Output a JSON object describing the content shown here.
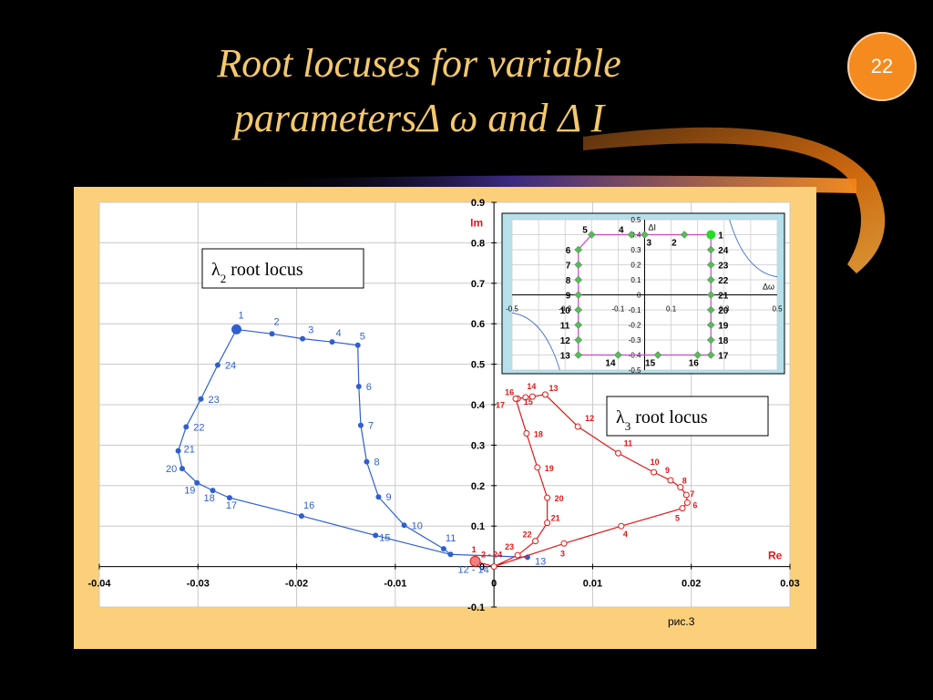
{
  "slide": {
    "title_line1": "Root locuses for variable",
    "title_line2": "parametersΔ ω  and Δ  I",
    "page_number": "22"
  },
  "colors": {
    "title": "#F4C86C",
    "badge": "#F58A1F",
    "frame": "#FCD07A",
    "lambda2": "#2E5FD0",
    "lambda3": "#E01818",
    "inset_line": "#CC44CC",
    "inset_marker": "#5CB85C"
  },
  "chart_data": [
    {
      "type": "line",
      "xlabel": "Re",
      "ylabel": "Im",
      "xlim": [
        -0.04,
        0.03
      ],
      "ylim": [
        -0.1,
        0.9
      ],
      "xticks": [
        -0.04,
        -0.03,
        -0.02,
        -0.01,
        0,
        0.01,
        0.02,
        0.03
      ],
      "xtick_labels": [
        "-0.04",
        "-0.03",
        "-0.02",
        "-0.01",
        "0",
        "0.01",
        "0.02",
        "0.03"
      ],
      "yticks": [
        -0.1,
        0,
        0.1,
        0.2,
        0.3,
        0.4,
        0.5,
        0.6,
        0.7,
        0.8,
        0.9
      ],
      "ytick_labels": [
        "-0.1",
        "0",
        "0.1",
        "0.2",
        "0.3",
        "0.4",
        "0.5",
        "0.6",
        "0.7",
        "0.8",
        "0.9"
      ],
      "grid": true,
      "caption": "рис.3",
      "annotations": [
        "λ2 root locus",
        "λ3 root locus"
      ],
      "series": [
        {
          "name": "λ2",
          "color": "#2E5FD0",
          "points": [
            {
              "label": "1",
              "x": -0.0261,
              "y": 0.586
            },
            {
              "label": "2",
              "x": -0.0225,
              "y": 0.575
            },
            {
              "label": "3",
              "x": -0.0194,
              "y": 0.563
            },
            {
              "label": "4",
              "x": -0.0164,
              "y": 0.555
            },
            {
              "label": "5",
              "x": -0.0138,
              "y": 0.547
            },
            {
              "label": "6",
              "x": -0.0137,
              "y": 0.445
            },
            {
              "label": "7",
              "x": -0.0135,
              "y": 0.349
            },
            {
              "label": "8",
              "x": -0.0129,
              "y": 0.259
            },
            {
              "label": "9",
              "x": -0.0117,
              "y": 0.172
            },
            {
              "label": "10",
              "x": -0.0091,
              "y": 0.102
            },
            {
              "label": "11",
              "x": -0.0051,
              "y": 0.044
            },
            {
              "label": "12 - 14",
              "x": -0.0044,
              "y": 0.03
            },
            {
              "label": "15",
              "x": -0.012,
              "y": 0.077
            },
            {
              "label": "16",
              "x": -0.0195,
              "y": 0.125
            },
            {
              "label": "17",
              "x": -0.0268,
              "y": 0.17
            },
            {
              "label": "18",
              "x": -0.0285,
              "y": 0.188
            },
            {
              "label": "19",
              "x": -0.0301,
              "y": 0.207
            },
            {
              "label": "20",
              "x": -0.0316,
              "y": 0.242
            },
            {
              "label": "21",
              "x": -0.032,
              "y": 0.286
            },
            {
              "label": "22",
              "x": -0.0312,
              "y": 0.345
            },
            {
              "label": "23",
              "x": -0.0297,
              "y": 0.414
            },
            {
              "label": "24",
              "x": -0.028,
              "y": 0.498
            },
            {
              "label": "13",
              "x": 0.0034,
              "y": 0.023
            }
          ]
        },
        {
          "name": "λ3",
          "color": "#E01818",
          "points": [
            {
              "label": "1",
              "x": -0.0019,
              "y": 0.013
            },
            {
              "label": "2 - 24",
              "x": 0.0,
              "y": 0.0
            },
            {
              "label": "3",
              "x": 0.0071,
              "y": 0.057
            },
            {
              "label": "4",
              "x": 0.0129,
              "y": 0.1
            },
            {
              "label": "5",
              "x": 0.0191,
              "y": 0.144
            },
            {
              "label": "6",
              "x": 0.0196,
              "y": 0.158
            },
            {
              "label": "7",
              "x": 0.0195,
              "y": 0.177
            },
            {
              "label": "8",
              "x": 0.0189,
              "y": 0.196
            },
            {
              "label": "9",
              "x": 0.0179,
              "y": 0.213
            },
            {
              "label": "10",
              "x": 0.0162,
              "y": 0.233
            },
            {
              "label": "11",
              "x": 0.0126,
              "y": 0.28
            },
            {
              "label": "12",
              "x": 0.0085,
              "y": 0.346
            },
            {
              "label": "13",
              "x": 0.0052,
              "y": 0.425
            },
            {
              "label": "14",
              "x": 0.0039,
              "y": 0.42
            },
            {
              "label": "15",
              "x": 0.0032,
              "y": 0.418
            },
            {
              "label": "16",
              "x": 0.0024,
              "y": 0.415
            },
            {
              "label": "17",
              "x": 0.0022,
              "y": 0.415
            },
            {
              "label": "18",
              "x": 0.0033,
              "y": 0.329
            },
            {
              "label": "19",
              "x": 0.0044,
              "y": 0.245
            },
            {
              "label": "20",
              "x": 0.0054,
              "y": 0.17
            },
            {
              "label": "21",
              "x": 0.0054,
              "y": 0.108
            },
            {
              "label": "22",
              "x": 0.0042,
              "y": 0.063
            },
            {
              "label": "23",
              "x": 0.0024,
              "y": 0.028
            }
          ]
        }
      ]
    },
    {
      "type": "line",
      "xlabel": "Δω",
      "ylabel": "ΔI",
      "xlim": [
        -0.5,
        0.5
      ],
      "ylim": [
        -0.5,
        0.5
      ],
      "xtick_labels": [
        "-0.5",
        "-0.3",
        "-0.1",
        "0.1",
        "0.3",
        "0.5"
      ],
      "ytick_labels": [
        "0.5",
        "0.4",
        "0.3",
        "0.2",
        "0.1",
        "0",
        "-0.1",
        "-0.2",
        "-0.3",
        "-0.4",
        "-0.5"
      ],
      "series": [
        {
          "name": "ΔI vs Δω",
          "color": "#CC44CC",
          "points": [
            {
              "label": "1",
              "x": 0.25,
              "y": 0.4
            },
            {
              "label": "2",
              "x": 0.15,
              "y": 0.4
            },
            {
              "label": "3",
              "x": 0.0,
              "y": 0.4
            },
            {
              "label": "4",
              "x": -0.05,
              "y": 0.4
            },
            {
              "label": "5",
              "x": -0.2,
              "y": 0.4
            },
            {
              "label": "6",
              "x": -0.25,
              "y": 0.3
            },
            {
              "label": "7",
              "x": -0.25,
              "y": 0.2
            },
            {
              "label": "8",
              "x": -0.25,
              "y": 0.1
            },
            {
              "label": "9",
              "x": -0.25,
              "y": 0.0
            },
            {
              "label": "10",
              "x": -0.25,
              "y": -0.1
            },
            {
              "label": "11",
              "x": -0.25,
              "y": -0.2
            },
            {
              "label": "12",
              "x": -0.25,
              "y": -0.3
            },
            {
              "label": "13",
              "x": -0.25,
              "y": -0.4
            },
            {
              "label": "14",
              "x": -0.1,
              "y": -0.4
            },
            {
              "label": "15",
              "x": 0.05,
              "y": -0.4
            },
            {
              "label": "16",
              "x": 0.2,
              "y": -0.4
            },
            {
              "label": "17",
              "x": 0.25,
              "y": -0.4
            },
            {
              "label": "18",
              "x": 0.25,
              "y": -0.3
            },
            {
              "label": "19",
              "x": 0.25,
              "y": -0.2
            },
            {
              "label": "20",
              "x": 0.25,
              "y": -0.1
            },
            {
              "label": "21",
              "x": 0.25,
              "y": 0.0
            },
            {
              "label": "22",
              "x": 0.25,
              "y": 0.1
            },
            {
              "label": "23",
              "x": 0.25,
              "y": 0.2
            },
            {
              "label": "24",
              "x": 0.25,
              "y": 0.3
            }
          ]
        }
      ]
    }
  ]
}
